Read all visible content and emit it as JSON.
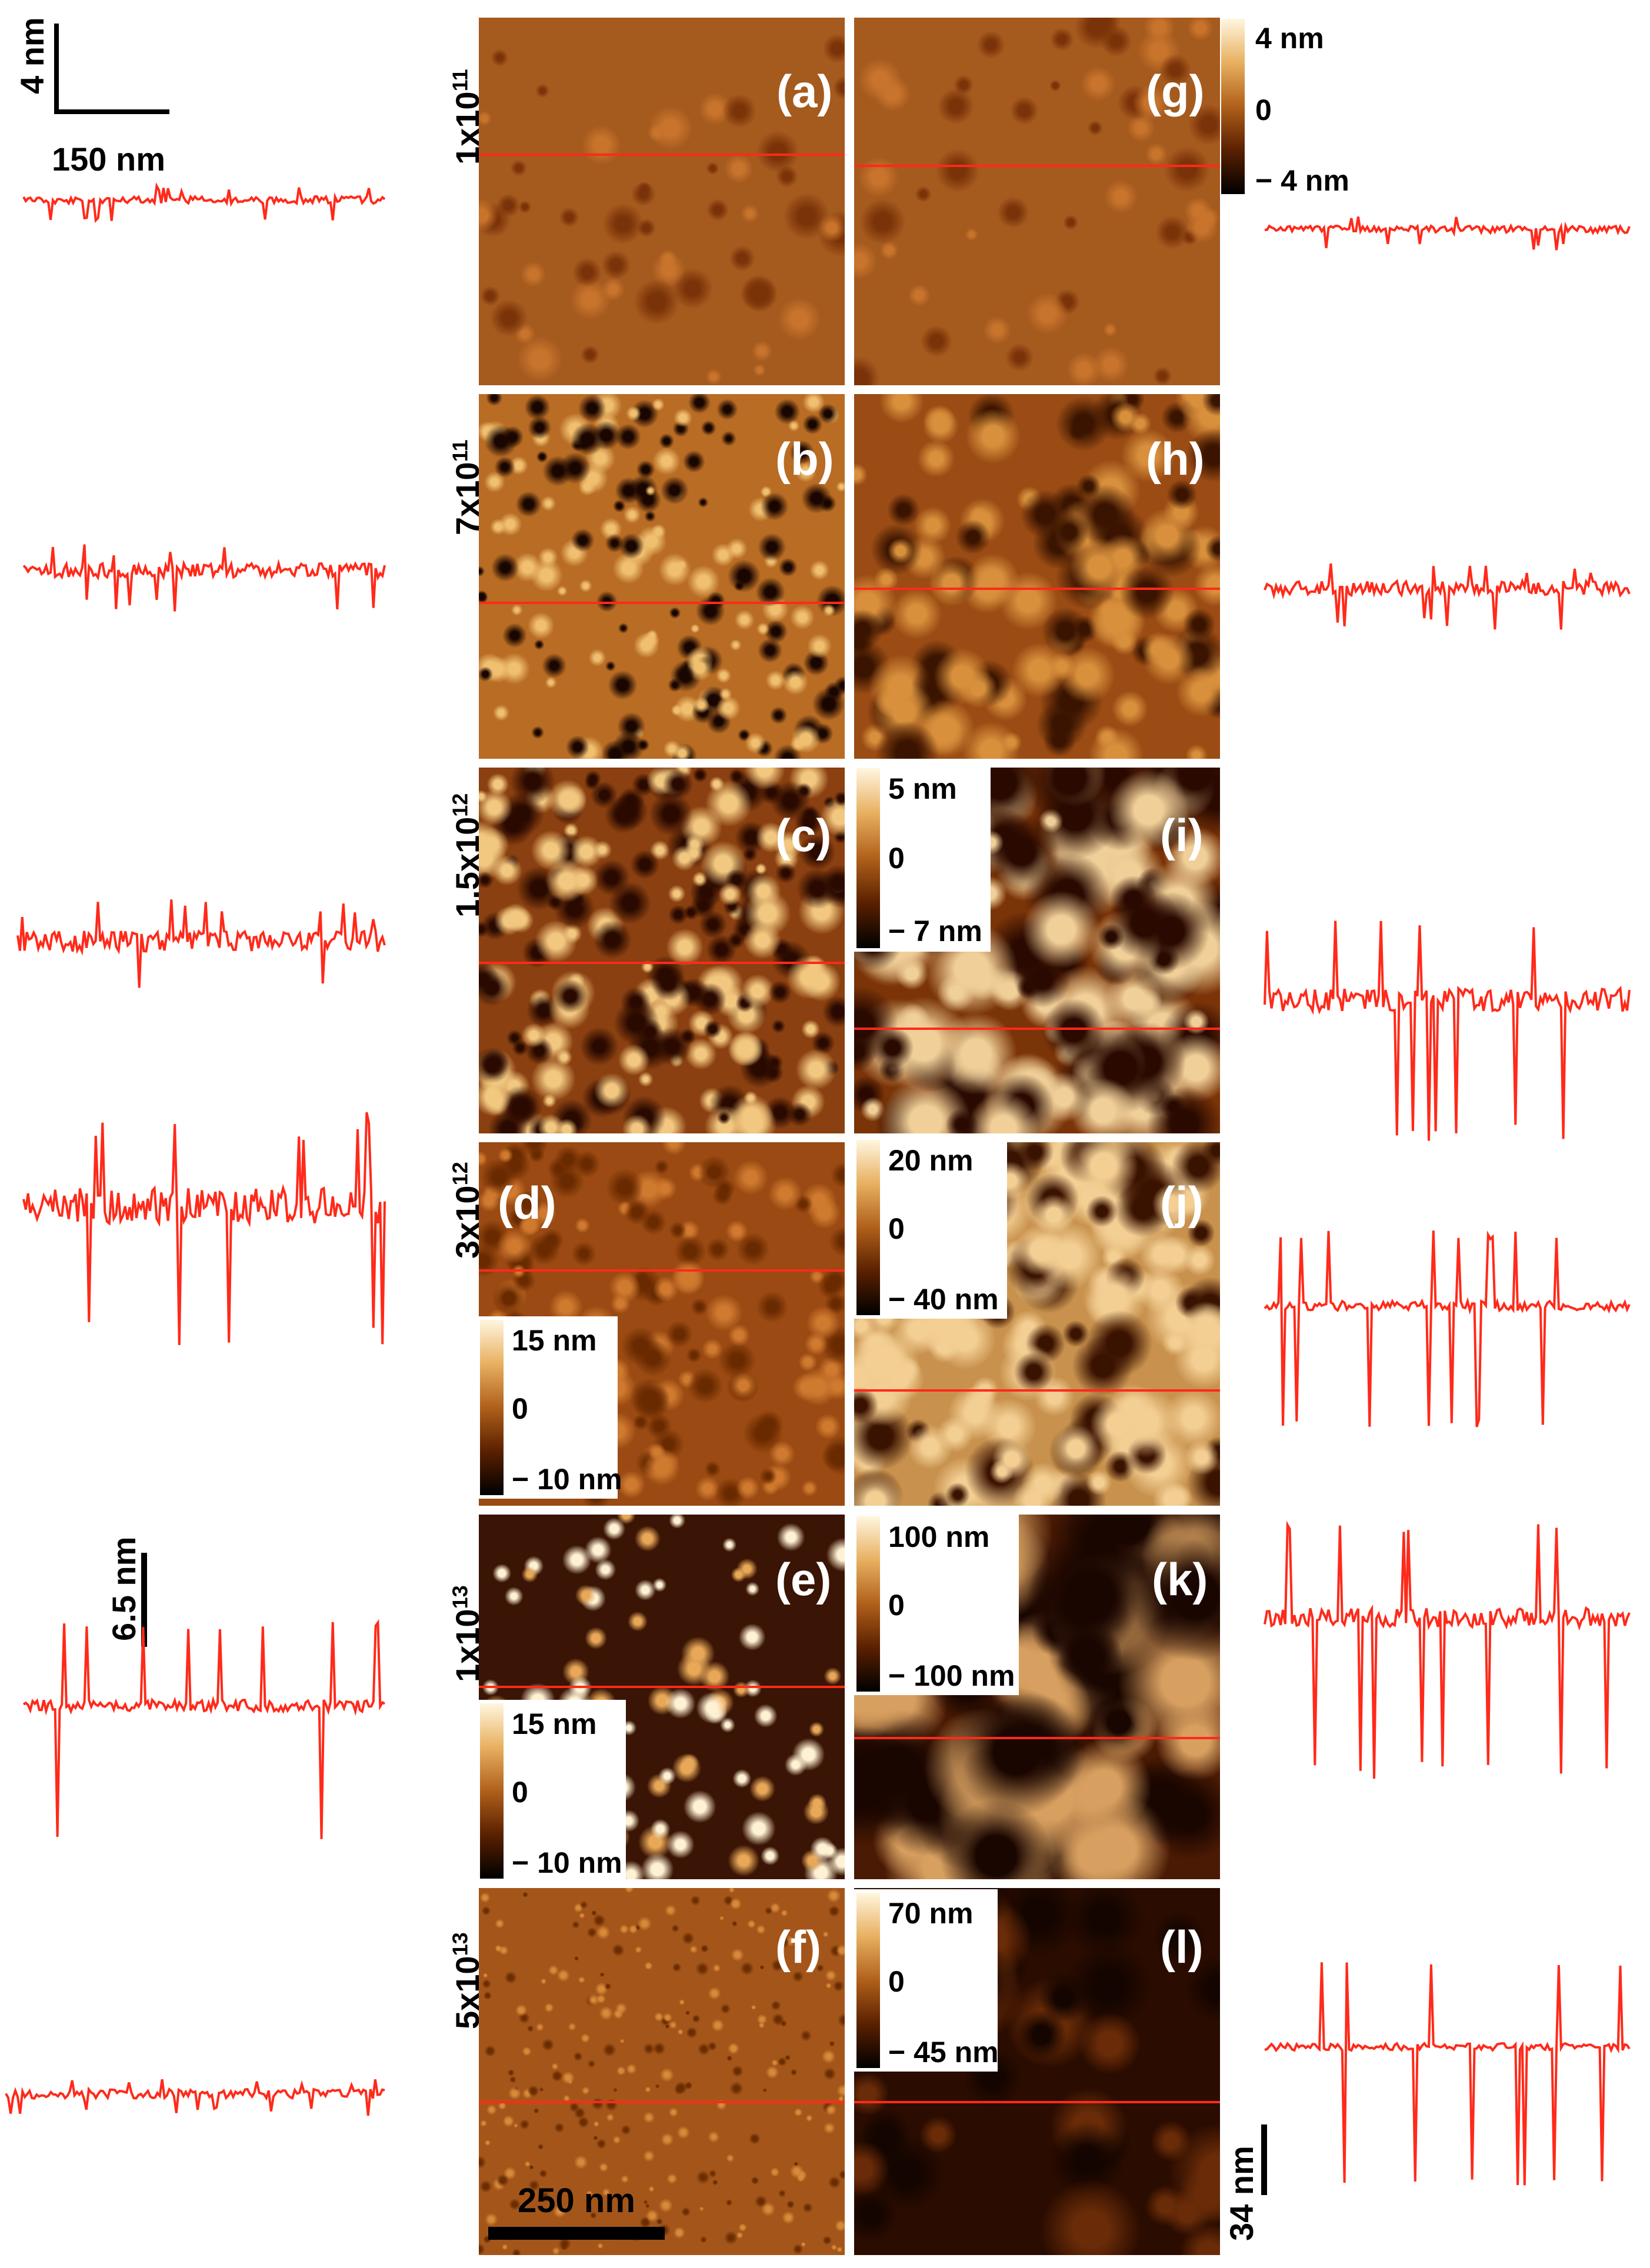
{
  "figure": {
    "rows": [
      {
        "dose": "1x10",
        "exp": "11"
      },
      {
        "dose": "7x10",
        "exp": "11"
      },
      {
        "dose": "1.5x10",
        "exp": "12"
      },
      {
        "dose": "3x10",
        "exp": "12"
      },
      {
        "dose": "1x10",
        "exp": "13"
      },
      {
        "dose": "5x10",
        "exp": "13"
      }
    ],
    "panels": [
      {
        "id": "a",
        "label": "(a)",
        "tone": "smooth"
      },
      {
        "id": "b",
        "label": "(b)",
        "tone": "pitted"
      },
      {
        "id": "c",
        "label": "(c)",
        "tone": "rough"
      },
      {
        "id": "d",
        "label": "(d)",
        "tone": "grainy"
      },
      {
        "id": "e",
        "label": "(e)",
        "tone": "particles"
      },
      {
        "id": "f",
        "label": "(f)",
        "tone": "fine"
      },
      {
        "id": "g",
        "label": "(g)",
        "tone": "smooth"
      },
      {
        "id": "h",
        "label": "(h)",
        "tone": "mottled"
      },
      {
        "id": "i",
        "label": "(i)",
        "tone": "patchy"
      },
      {
        "id": "j",
        "label": "(j)",
        "tone": "bright-grains"
      },
      {
        "id": "k",
        "label": "(k)",
        "tone": "clusters"
      },
      {
        "id": "l",
        "label": "(l)",
        "tone": "ridges"
      }
    ],
    "colorbars": {
      "g": {
        "top": "4 nm",
        "mid": "0",
        "bottom": "− 4 nm"
      },
      "i": {
        "top": "5 nm",
        "mid": "0",
        "bottom": "− 7 nm"
      },
      "d": {
        "top": "15 nm",
        "mid": "0",
        "bottom": "− 10 nm"
      },
      "j": {
        "top": "20 nm",
        "mid": "0",
        "bottom": "− 40 nm"
      },
      "k": {
        "top": "100 nm",
        "mid": "0",
        "bottom": "− 100 nm"
      },
      "e": {
        "top": "15 nm",
        "mid": "0",
        "bottom": "− 10 nm"
      },
      "l": {
        "top": "70 nm",
        "mid": "0",
        "bottom": "− 45 nm"
      }
    },
    "scale_bars": {
      "profile_vertical_top": "4 nm",
      "profile_horizontal_top": "150 nm",
      "profile_vertical_mid": "6.5 nm",
      "image_scale": "250 nm",
      "profile_vertical_right": "34 nm"
    },
    "colors": {
      "profile_line": "#ff2a1a",
      "afm_dark": "#2a0c00",
      "afm_mid": "#a4561a",
      "afm_light": "#f4d79a"
    }
  }
}
